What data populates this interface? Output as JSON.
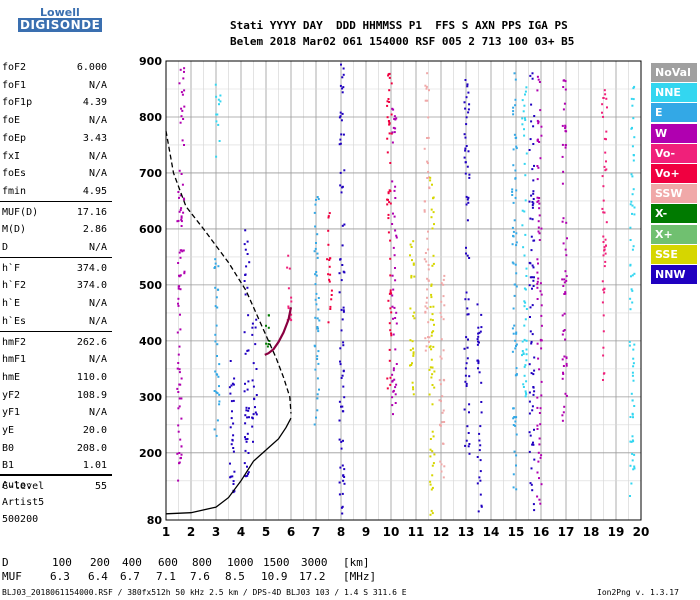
{
  "logo": {
    "line1": "Lowell",
    "line2": "DIGISONDE"
  },
  "header": {
    "line1": "Stati YYYY DAY  DDD HHMMSS P1  FFS S AXN PPS IGA PS",
    "line2": "Belem 2018 Mar02 061 154000 RSF 005 2 713 100 03+ B5"
  },
  "params": [
    {
      "name": "foF2",
      "value": "6.000"
    },
    {
      "name": "foF1",
      "value": "N/A"
    },
    {
      "name": "foF1p",
      "value": "4.39"
    },
    {
      "name": "foE",
      "value": "N/A"
    },
    {
      "name": "foEp",
      "value": "3.43"
    },
    {
      "name": "fxI",
      "value": "N/A"
    },
    {
      "name": "foEs",
      "value": "N/A"
    },
    {
      "name": "fmin",
      "value": "4.95"
    },
    {
      "name": "MUF(D)",
      "value": "17.16"
    },
    {
      "name": "M(D)",
      "value": "2.86"
    },
    {
      "name": "D",
      "value": "N/A"
    },
    {
      "name": "h`F",
      "value": "374.0"
    },
    {
      "name": "h`F2",
      "value": "374.0"
    },
    {
      "name": "h`E",
      "value": "N/A"
    },
    {
      "name": "h`Es",
      "value": "N/A"
    },
    {
      "name": "hmF2",
      "value": "262.6"
    },
    {
      "name": "hmF1",
      "value": "N/A"
    },
    {
      "name": "hmE",
      "value": "110.0"
    },
    {
      "name": "yF2",
      "value": "108.9"
    },
    {
      "name": "yF1",
      "value": "N/A"
    },
    {
      "name": "yE",
      "value": "20.0"
    },
    {
      "name": "B0",
      "value": "208.0"
    },
    {
      "name": "B1",
      "value": "1.01"
    },
    {
      "name": "C-level",
      "value": "55"
    }
  ],
  "autoscaling": {
    "line1": "Auto:",
    "line2": "Artist5",
    "line3": "500200"
  },
  "legend": [
    {
      "label": "NoVal",
      "color": "#a0a0a0"
    },
    {
      "label": "NNE",
      "color": "#33d6f0"
    },
    {
      "label": "E",
      "color": "#33a8e6"
    },
    {
      "label": "W",
      "color": "#b000b0"
    },
    {
      "label": "Vo-",
      "color": "#f0207a"
    },
    {
      "label": "Vo+",
      "color": "#f00040"
    },
    {
      "label": "SSW",
      "color": "#f0a8a8"
    },
    {
      "label": "X-",
      "color": "#007a00"
    },
    {
      "label": "X+",
      "color": "#70c070"
    },
    {
      "label": "SSE",
      "color": "#d6d600"
    },
    {
      "label": "NNW",
      "color": "#2000c0"
    }
  ],
  "muf_table": {
    "d_label": "D",
    "d_values": [
      "100",
      "200",
      "400",
      "600",
      "800",
      "1000",
      "1500",
      "3000"
    ],
    "d_unit": "[km]",
    "muf_label": "MUF",
    "muf_values": [
      "6.3",
      "6.4",
      "6.7",
      "7.1",
      "7.6",
      "8.5",
      "10.9",
      "17.2"
    ],
    "muf_unit": "[MHz]"
  },
  "footer": {
    "left": "BLJ03_2018061154000.RSF / 380fx512h 50 kHz 2.5 km / DPS-4D BLJ03 103 / 1.4 S 311.6 E",
    "right": "Ion2Png v. 1.3.17"
  },
  "chart_data": {
    "type": "scatter",
    "x_ticks": [
      1,
      2,
      3,
      4,
      5,
      6,
      7,
      8,
      9,
      10,
      11,
      12,
      13,
      14,
      15,
      16,
      17,
      18,
      19,
      20
    ],
    "y_ticks": [
      80,
      200,
      300,
      400,
      500,
      600,
      700,
      800,
      900
    ],
    "xlim": [
      1,
      20
    ],
    "ylim": [
      80,
      900
    ],
    "grid": true,
    "ionogram_trace": [
      [
        1.0,
        91
      ],
      [
        2.0,
        93
      ],
      [
        3.0,
        103
      ],
      [
        3.5,
        120
      ],
      [
        4.0,
        150
      ],
      [
        4.5,
        185
      ],
      [
        5.0,
        205
      ],
      [
        5.5,
        225
      ],
      [
        5.8,
        245
      ],
      [
        6.0,
        262
      ]
    ],
    "profile_dashed": [
      [
        1.0,
        775
      ],
      [
        1.3,
        700
      ],
      [
        1.8,
        640
      ],
      [
        2.5,
        600
      ],
      [
        3.5,
        540
      ],
      [
        4.2,
        490
      ],
      [
        4.7,
        440
      ],
      [
        5.1,
        400
      ],
      [
        5.4,
        370
      ],
      [
        5.7,
        335
      ],
      [
        5.95,
        300
      ],
      [
        6.0,
        270
      ]
    ],
    "o_trace": [
      [
        4.95,
        375
      ],
      [
        5.1,
        378
      ],
      [
        5.3,
        385
      ],
      [
        5.5,
        398
      ],
      [
        5.7,
        415
      ],
      [
        5.9,
        438
      ],
      [
        6.0,
        460
      ]
    ],
    "echo_columns": [
      {
        "x": 1.5,
        "y": [
          150,
          700
        ],
        "color": "#b000b0"
      },
      {
        "x": 1.6,
        "y": [
          520,
          890
        ],
        "color": "#b000b0"
      },
      {
        "x": 3.0,
        "y": [
          230,
          560
        ],
        "color": "#33a8e6"
      },
      {
        "x": 3.05,
        "y": [
          730,
          860
        ],
        "color": "#33d6f0"
      },
      {
        "x": 3.6,
        "y": [
          120,
          430
        ],
        "color": "#2000c0"
      },
      {
        "x": 4.2,
        "y": [
          140,
          600
        ],
        "color": "#2000c0"
      },
      {
        "x": 4.5,
        "y": [
          220,
          440
        ],
        "color": "#2000c0"
      },
      {
        "x": 5.0,
        "y": [
          380,
          470
        ],
        "color": "#007a00"
      },
      {
        "x": 5.9,
        "y": [
          420,
          560
        ],
        "color": "#f0207a"
      },
      {
        "x": 7.0,
        "y": [
          250,
          700
        ],
        "color": "#33a8e6"
      },
      {
        "x": 7.5,
        "y": [
          430,
          640
        ],
        "color": "#f00040"
      },
      {
        "x": 8.0,
        "y": [
          90,
          900
        ],
        "color": "#2000c0"
      },
      {
        "x": 9.9,
        "y": [
          300,
          880
        ],
        "color": "#f00040"
      },
      {
        "x": 10.1,
        "y": [
          260,
          820
        ],
        "color": "#b000b0"
      },
      {
        "x": 10.8,
        "y": [
          280,
          580
        ],
        "color": "#d6d600"
      },
      {
        "x": 11.4,
        "y": [
          380,
          880
        ],
        "color": "#f0a8a8"
      },
      {
        "x": 11.6,
        "y": [
          80,
          700
        ],
        "color": "#d6d600"
      },
      {
        "x": 12.0,
        "y": [
          140,
          520
        ],
        "color": "#f0a8a8"
      },
      {
        "x": 13.0,
        "y": [
          200,
          880
        ],
        "color": "#2000c0"
      },
      {
        "x": 13.5,
        "y": [
          90,
          480
        ],
        "color": "#2000c0"
      },
      {
        "x": 14.9,
        "y": [
          120,
          880
        ],
        "color": "#33a8e6"
      },
      {
        "x": 15.3,
        "y": [
          300,
          860
        ],
        "color": "#33d6f0"
      },
      {
        "x": 15.6,
        "y": [
          90,
          880
        ],
        "color": "#2000c0"
      },
      {
        "x": 15.9,
        "y": [
          100,
          880
        ],
        "color": "#b000b0"
      },
      {
        "x": 16.9,
        "y": [
          250,
          880
        ],
        "color": "#b000b0"
      },
      {
        "x": 18.5,
        "y": [
          330,
          860
        ],
        "color": "#f0207a"
      },
      {
        "x": 19.6,
        "y": [
          120,
          860
        ],
        "color": "#33d6f0"
      }
    ]
  }
}
